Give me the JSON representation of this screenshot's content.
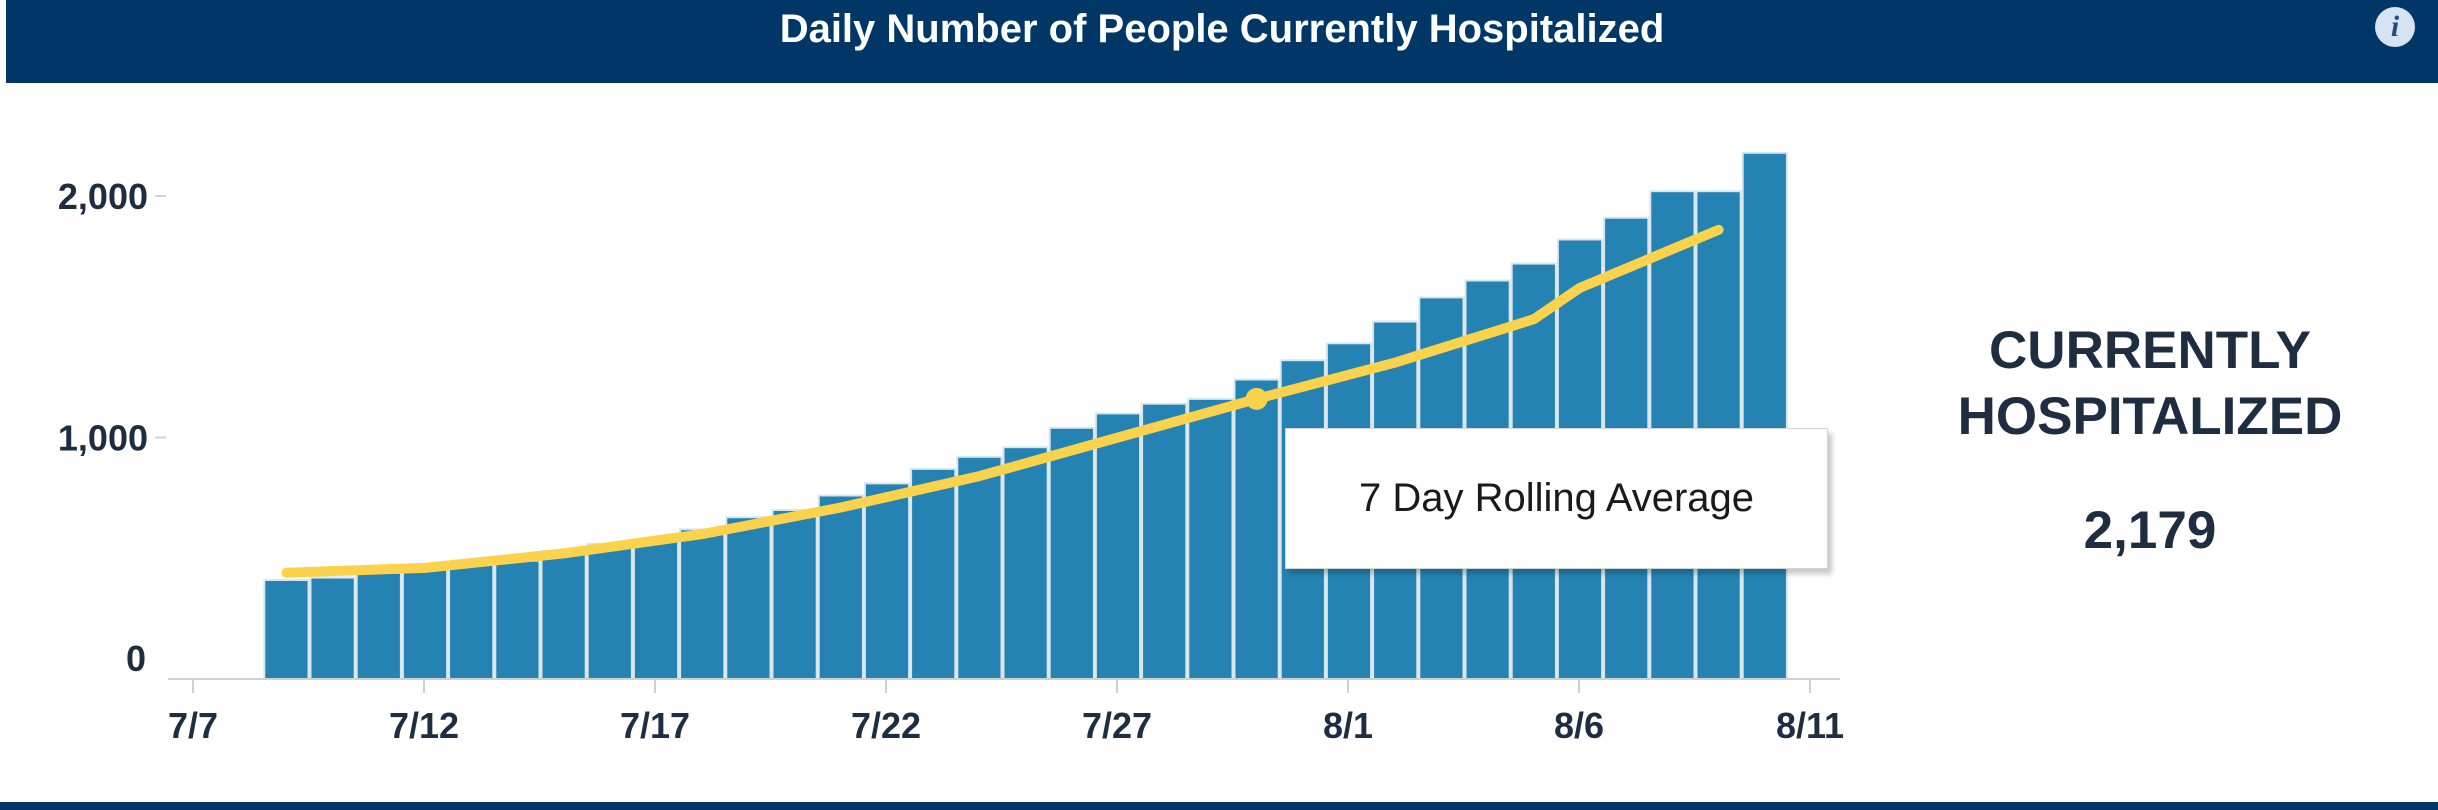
{
  "header": {
    "title": "Daily Number of People Currently Hospitalized",
    "info_icon": "info-icon"
  },
  "colors": {
    "header_bg": "#003767",
    "bar": "#2483b3",
    "bar_edge": "#d9e6ee",
    "line": "#fbd24c",
    "axis": "#d0d0d0",
    "text": "#1e2d40"
  },
  "tooltip": {
    "label": "7 Day Rolling Average"
  },
  "kpi": {
    "label": "CURRENTLY\nHOSPITALIZED",
    "value": "2,179"
  },
  "chart_data": {
    "type": "bar",
    "title": "Daily Number of People Currently Hospitalized",
    "xlabel": "",
    "ylabel": "",
    "x_ticks": [
      "7/7",
      "7/12",
      "7/17",
      "7/22",
      "7/27",
      "8/1",
      "8/6",
      "8/11"
    ],
    "y_ticks": [
      0,
      1000,
      2000
    ],
    "y_tick_labels": [
      "0",
      "1,000",
      "2,000"
    ],
    "ylim": [
      0,
      2200
    ],
    "grid": false,
    "categories": [
      "7/9",
      "7/10",
      "7/11",
      "7/12",
      "7/13",
      "7/14",
      "7/15",
      "7/16",
      "7/17",
      "7/18",
      "7/19",
      "7/20",
      "7/21",
      "7/22",
      "7/23",
      "7/24",
      "7/25",
      "7/26",
      "7/27",
      "7/28",
      "7/29",
      "7/30",
      "7/31",
      "8/1",
      "8/2",
      "8/3",
      "8/4",
      "8/5",
      "8/6",
      "8/7",
      "8/8",
      "8/9",
      "8/10"
    ],
    "series": [
      {
        "name": "Currently Hospitalized",
        "type": "bar",
        "values": [
          410,
          420,
          440,
          460,
          475,
          490,
          530,
          560,
          575,
          620,
          670,
          700,
          760,
          810,
          870,
          920,
          960,
          1040,
          1100,
          1140,
          1160,
          1240,
          1320,
          1390,
          1480,
          1580,
          1650,
          1720,
          1820,
          1910,
          2020,
          2020,
          2179
        ]
      },
      {
        "name": "7 Day Rolling Average",
        "type": "line",
        "x": [
          "7/9",
          "7/12",
          "7/15",
          "7/18",
          "7/21",
          "7/24",
          "7/27",
          "7/30",
          "8/2",
          "8/5",
          "8/6",
          "8/9"
        ],
        "values": [
          440,
          460,
          520,
          600,
          710,
          840,
          1000,
          1160,
          1310,
          1490,
          1620,
          1860
        ],
        "highlight": {
          "x": "7/30",
          "value": 1160
        }
      }
    ]
  }
}
